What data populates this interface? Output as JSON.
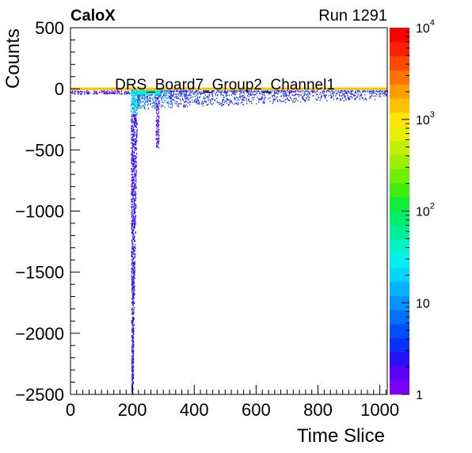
{
  "header": {
    "experiment": "CaloX",
    "run": "Run 1291"
  },
  "chart_data": {
    "type": "heatmap",
    "title": "DRS_Board7_Group2_Channel1",
    "xlabel": "Time Slice",
    "ylabel": "Counts",
    "xlim": [
      0,
      1024
    ],
    "ylim": [
      -2500,
      500
    ],
    "x_ticks": [
      0,
      200,
      400,
      600,
      800,
      1000
    ],
    "y_ticks": [
      500,
      0,
      -500,
      -1000,
      -1500,
      -2000,
      -2500
    ],
    "y_tick_labels": [
      "500",
      "0",
      "−500",
      "−1000",
      "−1500",
      "−2000",
      "−2500"
    ],
    "colorbar": {
      "scale": "log",
      "range": [
        1,
        10000
      ],
      "ticks": [
        {
          "value": 1,
          "base": "1",
          "exp": ""
        },
        {
          "value": 10,
          "base": "10",
          "exp": ""
        },
        {
          "value": 100,
          "base": "10",
          "exp": "2"
        },
        {
          "value": 1000,
          "base": "10",
          "exp": "3"
        },
        {
          "value": 10000,
          "base": "10",
          "exp": "4"
        }
      ],
      "colors": [
        "#7a00ff",
        "#5a00ff",
        "#2a10ff",
        "#0a30ff",
        "#0050ff",
        "#0072ff",
        "#0094ff",
        "#00b4ff",
        "#00d4ff",
        "#00f0f0",
        "#00f4c8",
        "#00f09a",
        "#00ee6c",
        "#10ec3c",
        "#40ec10",
        "#6ef000",
        "#9af000",
        "#c4f000",
        "#e8f000",
        "#ffe600",
        "#ffc200",
        "#ff9c00",
        "#ff7400",
        "#ff4a00",
        "#ff2000",
        "#ff0000"
      ]
    },
    "features": [
      {
        "name": "baseline",
        "x_range": [
          0,
          1024
        ],
        "y": 0,
        "counts": 10000
      },
      {
        "name": "pulse-trace",
        "x_range": [
          195,
          215
        ],
        "y_min": -2500,
        "y_max": 0,
        "counts": 3
      },
      {
        "name": "recovery-band",
        "x_range": [
          215,
          1024
        ],
        "y_min": -150,
        "y_max": 0,
        "counts": 5
      }
    ]
  }
}
